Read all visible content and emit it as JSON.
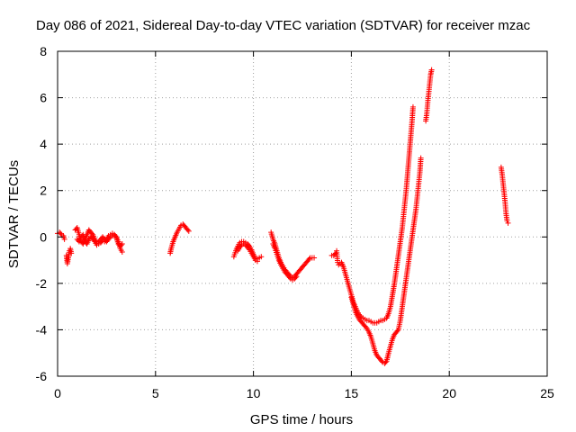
{
  "chart_data": {
    "type": "scatter",
    "title": "Day 086 of 2021, Sidereal Day-to-day VTEC variation (SDTVAR) for receiver mzac",
    "xlabel": "GPS time / hours",
    "ylabel": "SDTVAR / TECUs",
    "xlim": [
      0,
      25
    ],
    "ylim": [
      -6,
      8
    ],
    "x_ticks": [
      0,
      5,
      10,
      15,
      20,
      25
    ],
    "y_ticks": [
      -6,
      -4,
      -2,
      0,
      2,
      4,
      6,
      8
    ],
    "x_tick_labels": [
      "0",
      "5",
      "10",
      "15",
      "20",
      "25"
    ],
    "y_tick_labels": [
      "-6",
      "-4",
      "-2",
      "0",
      "2",
      "4",
      "6",
      "8"
    ],
    "grid": true,
    "marker": "plus",
    "color": "#ff0000",
    "series": [
      {
        "segments": [
          [
            [
              0.0,
              0.15
            ],
            [
              0.1,
              0.2
            ],
            [
              0.2,
              0.1
            ],
            [
              0.3,
              0.05
            ],
            [
              0.35,
              -0.1
            ]
          ],
          [
            [
              0.45,
              -0.8
            ],
            [
              0.5,
              -1.15
            ],
            [
              0.55,
              -0.9
            ],
            [
              0.6,
              -0.6
            ],
            [
              0.65,
              -0.5
            ],
            [
              0.7,
              -0.7
            ]
          ],
          [
            [
              0.9,
              0.3
            ],
            [
              1.0,
              0.4
            ],
            [
              1.1,
              0.1
            ],
            [
              1.2,
              -0.2
            ],
            [
              1.3,
              -0.3
            ],
            [
              1.4,
              -0.1
            ],
            [
              1.5,
              0.1
            ],
            [
              1.6,
              0.3
            ],
            [
              1.7,
              0.2
            ],
            [
              1.8,
              0.1
            ],
            [
              1.9,
              -0.1
            ],
            [
              2.0,
              -0.25
            ],
            [
              2.1,
              -0.2
            ],
            [
              2.2,
              -0.1
            ],
            [
              2.3,
              0.0
            ],
            [
              2.4,
              -0.1
            ],
            [
              2.5,
              -0.2
            ],
            [
              2.6,
              -0.1
            ],
            [
              2.7,
              0.0
            ],
            [
              2.8,
              0.05
            ],
            [
              2.9,
              0.1
            ],
            [
              3.0,
              0.0
            ],
            [
              3.1,
              -0.2
            ],
            [
              3.2,
              -0.5
            ],
            [
              3.3,
              -0.65
            ]
          ],
          [
            [
              1.0,
              -0.1
            ],
            [
              1.1,
              -0.2
            ],
            [
              1.2,
              0.0
            ],
            [
              1.3,
              0.1
            ],
            [
              1.4,
              -0.2
            ],
            [
              1.5,
              -0.3
            ],
            [
              1.6,
              -0.1
            ],
            [
              1.7,
              0.0
            ],
            [
              1.8,
              -0.1
            ],
            [
              1.9,
              -0.2
            ],
            [
              2.0,
              -0.35
            ],
            [
              2.1,
              -0.3
            ],
            [
              2.2,
              -0.25
            ],
            [
              2.3,
              -0.15
            ],
            [
              2.4,
              -0.2
            ],
            [
              2.5,
              -0.1
            ],
            [
              2.6,
              0.05
            ],
            [
              2.7,
              0.1
            ],
            [
              2.8,
              0.15
            ],
            [
              2.9,
              0.1
            ],
            [
              3.0,
              -0.05
            ],
            [
              3.1,
              -0.3
            ],
            [
              3.2,
              -0.4
            ],
            [
              3.3,
              -0.3
            ]
          ],
          [
            [
              5.75,
              -0.7
            ],
            [
              5.8,
              -0.5
            ],
            [
              5.9,
              -0.2
            ],
            [
              6.0,
              0.0
            ],
            [
              6.1,
              0.2
            ],
            [
              6.2,
              0.35
            ],
            [
              6.3,
              0.5
            ],
            [
              6.4,
              0.55
            ],
            [
              6.5,
              0.45
            ],
            [
              6.6,
              0.35
            ],
            [
              6.7,
              0.25
            ]
          ],
          [
            [
              9.0,
              -0.85
            ],
            [
              9.1,
              -0.6
            ],
            [
              9.2,
              -0.4
            ],
            [
              9.3,
              -0.25
            ],
            [
              9.4,
              -0.2
            ],
            [
              9.5,
              -0.2
            ],
            [
              9.6,
              -0.25
            ],
            [
              9.7,
              -0.3
            ],
            [
              9.8,
              -0.4
            ],
            [
              9.9,
              -0.55
            ],
            [
              10.0,
              -0.75
            ],
            [
              10.1,
              -0.9
            ],
            [
              10.2,
              -0.95
            ],
            [
              10.3,
              -0.9
            ],
            [
              10.4,
              -0.85
            ]
          ],
          [
            [
              9.2,
              -0.6
            ],
            [
              9.3,
              -0.45
            ],
            [
              9.4,
              -0.35
            ],
            [
              9.5,
              -0.3
            ],
            [
              9.6,
              -0.35
            ],
            [
              9.7,
              -0.45
            ],
            [
              9.8,
              -0.55
            ],
            [
              9.9,
              -0.7
            ],
            [
              10.0,
              -0.85
            ],
            [
              10.1,
              -1.0
            ],
            [
              10.2,
              -1.05
            ]
          ],
          [
            [
              10.9,
              0.2
            ],
            [
              11.0,
              -0.1
            ],
            [
              11.1,
              -0.3
            ],
            [
              11.2,
              -0.6
            ],
            [
              11.3,
              -0.9
            ],
            [
              11.4,
              -1.1
            ],
            [
              11.5,
              -1.25
            ],
            [
              11.6,
              -1.4
            ],
            [
              11.7,
              -1.5
            ],
            [
              11.8,
              -1.6
            ],
            [
              11.9,
              -1.7
            ],
            [
              12.0,
              -1.75
            ],
            [
              12.1,
              -1.7
            ],
            [
              12.2,
              -1.6
            ],
            [
              12.3,
              -1.5
            ],
            [
              12.4,
              -1.4
            ],
            [
              12.5,
              -1.3
            ],
            [
              12.6,
              -1.2
            ],
            [
              12.7,
              -1.1
            ],
            [
              12.8,
              -1.0
            ],
            [
              12.9,
              -0.9
            ],
            [
              13.0,
              -0.9
            ],
            [
              13.1,
              -0.9
            ]
          ],
          [
            [
              11.0,
              -0.3
            ],
            [
              11.1,
              -0.5
            ],
            [
              11.2,
              -0.75
            ],
            [
              11.3,
              -1.0
            ],
            [
              11.4,
              -1.2
            ],
            [
              11.5,
              -1.35
            ],
            [
              11.6,
              -1.5
            ],
            [
              11.7,
              -1.6
            ],
            [
              11.8,
              -1.7
            ],
            [
              11.9,
              -1.8
            ],
            [
              12.0,
              -1.85
            ],
            [
              12.1,
              -1.8
            ],
            [
              12.2,
              -1.7
            ]
          ],
          [
            [
              14.0,
              -0.8
            ],
            [
              14.1,
              -0.8
            ],
            [
              14.2,
              -0.7
            ],
            [
              14.25,
              -0.6
            ],
            [
              14.3,
              -1.1
            ],
            [
              14.35,
              -1.2
            ],
            [
              14.5,
              -1.1
            ],
            [
              14.6,
              -1.3
            ],
            [
              14.7,
              -1.6
            ],
            [
              14.8,
              -1.9
            ],
            [
              14.9,
              -2.2
            ],
            [
              15.0,
              -2.5
            ],
            [
              15.1,
              -2.8
            ],
            [
              15.2,
              -3.0
            ],
            [
              15.3,
              -3.2
            ],
            [
              15.4,
              -3.35
            ],
            [
              15.5,
              -3.45
            ],
            [
              15.6,
              -3.5
            ],
            [
              15.7,
              -3.55
            ],
            [
              15.8,
              -3.6
            ],
            [
              15.9,
              -3.6
            ],
            [
              16.0,
              -3.65
            ],
            [
              16.1,
              -3.7
            ],
            [
              16.2,
              -3.7
            ],
            [
              16.3,
              -3.7
            ],
            [
              16.4,
              -3.65
            ],
            [
              16.5,
              -3.6
            ],
            [
              16.6,
              -3.6
            ],
            [
              16.7,
              -3.55
            ],
            [
              16.8,
              -3.5
            ],
            [
              16.9,
              -3.3
            ],
            [
              17.0,
              -3.0
            ],
            [
              17.1,
              -2.5
            ],
            [
              17.2,
              -2.0
            ],
            [
              17.3,
              -1.4
            ],
            [
              17.4,
              -0.8
            ],
            [
              17.5,
              -0.2
            ],
            [
              17.6,
              0.4
            ],
            [
              17.7,
              1.2
            ],
            [
              17.8,
              2.0
            ],
            [
              17.9,
              3.0
            ],
            [
              18.0,
              4.0
            ],
            [
              18.1,
              5.0
            ],
            [
              18.15,
              5.6
            ]
          ],
          [
            [
              15.0,
              -2.6
            ],
            [
              15.1,
              -2.9
            ],
            [
              15.2,
              -3.2
            ],
            [
              15.3,
              -3.4
            ],
            [
              15.4,
              -3.55
            ],
            [
              15.5,
              -3.65
            ],
            [
              15.6,
              -3.75
            ],
            [
              15.7,
              -3.85
            ],
            [
              15.8,
              -3.95
            ],
            [
              15.9,
              -4.1
            ],
            [
              16.0,
              -4.3
            ],
            [
              16.1,
              -4.6
            ],
            [
              16.2,
              -4.9
            ],
            [
              16.3,
              -5.1
            ],
            [
              16.4,
              -5.2
            ],
            [
              16.5,
              -5.3
            ],
            [
              16.6,
              -5.4
            ],
            [
              16.7,
              -5.45
            ],
            [
              16.8,
              -5.35
            ],
            [
              16.9,
              -5.0
            ],
            [
              17.0,
              -4.7
            ],
            [
              17.1,
              -4.4
            ],
            [
              17.2,
              -4.2
            ],
            [
              17.3,
              -4.1
            ],
            [
              17.4,
              -4.0
            ],
            [
              17.5,
              -3.6
            ],
            [
              17.6,
              -3.0
            ],
            [
              17.7,
              -2.4
            ],
            [
              17.8,
              -1.8
            ],
            [
              17.9,
              -1.2
            ],
            [
              18.0,
              -0.6
            ],
            [
              18.1,
              0.0
            ],
            [
              18.2,
              0.6
            ],
            [
              18.3,
              1.2
            ],
            [
              18.4,
              2.0
            ],
            [
              18.5,
              2.8
            ],
            [
              18.55,
              3.4
            ]
          ],
          [
            [
              18.8,
              5.0
            ],
            [
              18.85,
              5.3
            ],
            [
              18.9,
              5.8
            ],
            [
              18.95,
              6.2
            ],
            [
              19.0,
              6.6
            ],
            [
              19.05,
              7.0
            ],
            [
              19.1,
              7.2
            ]
          ],
          [
            [
              22.65,
              3.0
            ],
            [
              22.7,
              2.7
            ],
            [
              22.75,
              2.3
            ],
            [
              22.8,
              1.9
            ],
            [
              22.85,
              1.5
            ],
            [
              22.9,
              1.0
            ],
            [
              22.95,
              0.7
            ],
            [
              23.0,
              0.6
            ]
          ]
        ]
      }
    ]
  }
}
